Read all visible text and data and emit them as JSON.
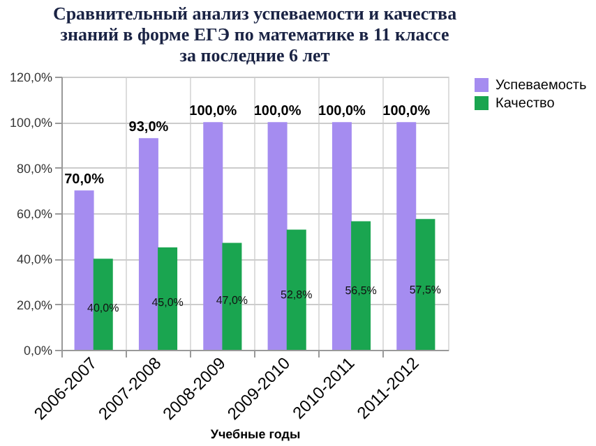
{
  "chart_data": {
    "type": "bar",
    "title": "Сравнительный анализ успеваемости и качества знаний  в форме ЕГЭ по математике  в 11 классе за последние 6 лет",
    "xlabel": "Учебные годы",
    "categories": [
      "2006-2007",
      "2007-2008",
      "2008-2009",
      "2009-2010",
      "2010-2011",
      "2011-2012"
    ],
    "series": [
      {
        "name": "Успеваемость",
        "color": "#a58cf0",
        "values": [
          70.0,
          93.0,
          100.0,
          100.0,
          100.0,
          100.0
        ],
        "value_labels": [
          "70,0%",
          "93,0%",
          "100,0%",
          "100,0%",
          "100,0%",
          "100,0%"
        ]
      },
      {
        "name": "Качество",
        "color": "#1aa550",
        "values": [
          40.0,
          45.0,
          47.0,
          52.8,
          56.5,
          57.5
        ],
        "value_labels": [
          "40,0%",
          "45,0%",
          "47,0%",
          "52,8%",
          "56,5%",
          "57,5%"
        ]
      }
    ],
    "ylim": [
      0,
      120
    ],
    "yticks": [
      {
        "value": 0,
        "label": "0,0%"
      },
      {
        "value": 20,
        "label": "20,0%"
      },
      {
        "value": 40,
        "label": "40,0%"
      },
      {
        "value": 60,
        "label": "60,0%"
      },
      {
        "value": 80,
        "label": "80,0%"
      },
      {
        "value": 100,
        "label": "100,0%"
      },
      {
        "value": 120,
        "label": "120,0%"
      }
    ],
    "grid": true,
    "legend": "right"
  }
}
